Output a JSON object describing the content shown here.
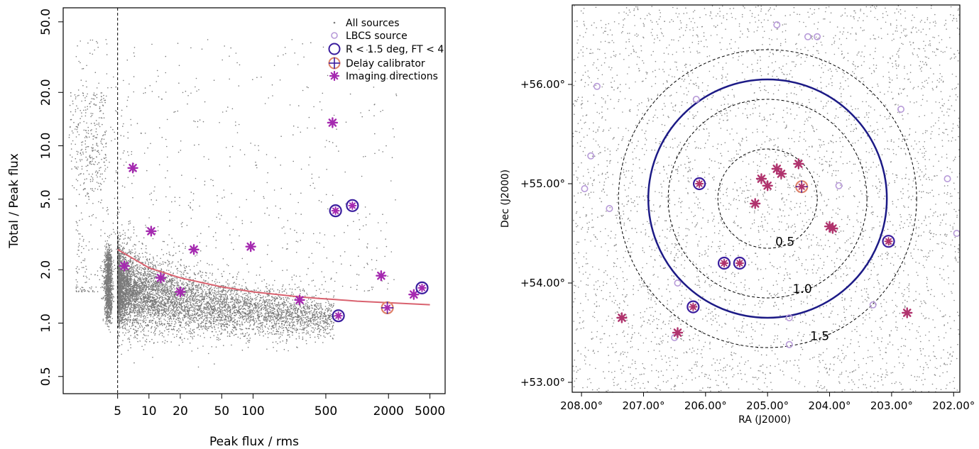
{
  "chart_data": [
    {
      "type": "scatter",
      "xlabel": "Peak flux / rms",
      "ylabel": "Total / Peak flux",
      "x_scale": "log",
      "y_scale": "log",
      "xlim": [
        1.5,
        7000
      ],
      "ylim": [
        0.4,
        60
      ],
      "x_ticks": [
        "5",
        "10",
        "20",
        "50",
        "100",
        "500",
        "2000",
        "5000"
      ],
      "x_tick_values": [
        5,
        10,
        20,
        50,
        100,
        500,
        2000,
        5000
      ],
      "y_ticks": [
        "0.5",
        "1.0",
        "2.0",
        "5.0",
        "10.0",
        "20.0",
        "50.0"
      ],
      "y_tick_values": [
        0.5,
        1,
        2,
        5,
        10,
        20,
        50
      ],
      "threshold_line": {
        "x": 5,
        "style": "dashed"
      },
      "fit_curve": {
        "color": "#d9626f",
        "points": [
          [
            5,
            2.6
          ],
          [
            10,
            2.05
          ],
          [
            20,
            1.8
          ],
          [
            50,
            1.6
          ],
          [
            100,
            1.5
          ],
          [
            300,
            1.4
          ],
          [
            1000,
            1.33
          ],
          [
            5000,
            1.27
          ]
        ]
      },
      "legend": {
        "placement": "top-right",
        "entries": [
          "All sources",
          "LBCS source",
          "R < 1.5 deg, FT < 4",
          "Delay calibrator",
          "Imaging directions"
        ]
      },
      "background_population": {
        "name": "All sources",
        "color": "#7a7a7a",
        "note_count_points_rendered": "dense"
      },
      "imaging_directions": [
        {
          "x": 7,
          "y": 7.5,
          "circled": false
        },
        {
          "x": 5.8,
          "y": 2.1,
          "circled": false
        },
        {
          "x": 10.5,
          "y": 3.3,
          "circled": false
        },
        {
          "x": 13,
          "y": 1.8,
          "circled": false
        },
        {
          "x": 20,
          "y": 1.5,
          "circled": false
        },
        {
          "x": 27,
          "y": 2.6,
          "circled": false
        },
        {
          "x": 95,
          "y": 2.7,
          "circled": false
        },
        {
          "x": 280,
          "y": 1.35,
          "circled": false
        },
        {
          "x": 580,
          "y": 13.5,
          "circled": false
        },
        {
          "x": 1700,
          "y": 1.85,
          "circled": false
        },
        {
          "x": 3500,
          "y": 1.45,
          "circled": false
        },
        {
          "x": 620,
          "y": 4.3,
          "circled": true
        },
        {
          "x": 900,
          "y": 4.6,
          "circled": true
        },
        {
          "x": 660,
          "y": 1.1,
          "circled": true
        },
        {
          "x": 4200,
          "y": 1.58,
          "circled": true
        },
        {
          "x": 1950,
          "y": 1.22,
          "circled": true,
          "delay_calibrator": true
        }
      ],
      "colors": {
        "star": "#a52ab0",
        "circle": "#3a1d9e",
        "calibrator": "#e0826a",
        "lbcs": "#b79ad8"
      }
    },
    {
      "type": "scatter",
      "xlabel": "RA (J2000)",
      "ylabel": "Dec (J2000)",
      "x_ticks": [
        "208.00°",
        "207.00°",
        "206.00°",
        "205.00°",
        "204.00°",
        "203.00°",
        "202.00°"
      ],
      "x_tick_values": [
        208,
        207,
        206,
        205,
        204,
        203,
        202
      ],
      "y_ticks": [
        "+53.00°",
        "+54.00°",
        "+55.00°",
        "+56.00°"
      ],
      "y_tick_values": [
        53,
        54,
        55,
        56
      ],
      "xlim": [
        208.15,
        201.9
      ],
      "ylim": [
        52.9,
        56.8
      ],
      "x_direction": "decreasing",
      "pointing_centre": {
        "ra": 205.0,
        "dec": 54.85
      },
      "radius_rings": [
        {
          "label": "0.5",
          "radius_deg": 0.5,
          "style": "dashed"
        },
        {
          "label": "1.0",
          "radius_deg": 1.0,
          "style": "dashed"
        },
        {
          "label": "1.5",
          "radius_deg": 1.5,
          "style": "dashed"
        },
        {
          "label": "",
          "radius_deg": 1.2,
          "style": "solid"
        }
      ],
      "lbcs_sources": [
        {
          "ra": 204.85,
          "dec": 56.6
        },
        {
          "ra": 204.35,
          "dec": 56.48
        },
        {
          "ra": 204.2,
          "dec": 56.48
        },
        {
          "ra": 207.75,
          "dec": 55.98
        },
        {
          "ra": 206.15,
          "dec": 55.85
        },
        {
          "ra": 202.85,
          "dec": 55.75
        },
        {
          "ra": 207.85,
          "dec": 55.28
        },
        {
          "ra": 207.95,
          "dec": 54.95
        },
        {
          "ra": 207.55,
          "dec": 54.75
        },
        {
          "ra": 203.85,
          "dec": 54.98
        },
        {
          "ra": 202.1,
          "dec": 55.05
        },
        {
          "ra": 201.95,
          "dec": 54.5
        },
        {
          "ra": 206.45,
          "dec": 54.0
        },
        {
          "ra": 206.5,
          "dec": 53.45
        },
        {
          "ra": 203.3,
          "dec": 53.78
        },
        {
          "ra": 204.65,
          "dec": 53.65
        },
        {
          "ra": 204.65,
          "dec": 53.38
        }
      ],
      "imaging_directions": [
        {
          "ra": 206.1,
          "dec": 55.0,
          "circled": true
        },
        {
          "ra": 204.45,
          "dec": 54.97,
          "circled": true,
          "delay_calibrator": true
        },
        {
          "ra": 203.05,
          "dec": 54.42,
          "circled": true
        },
        {
          "ra": 205.7,
          "dec": 54.2,
          "circled": true
        },
        {
          "ra": 205.45,
          "dec": 54.2,
          "circled": true
        },
        {
          "ra": 206.2,
          "dec": 53.76,
          "circled": true
        },
        {
          "ra": 204.85,
          "dec": 55.15,
          "circled": false
        },
        {
          "ra": 204.78,
          "dec": 55.1,
          "circled": false
        },
        {
          "ra": 204.5,
          "dec": 55.2,
          "circled": false
        },
        {
          "ra": 205.1,
          "dec": 55.05,
          "circled": false
        },
        {
          "ra": 205.0,
          "dec": 54.98,
          "circled": false
        },
        {
          "ra": 205.2,
          "dec": 54.8,
          "circled": false
        },
        {
          "ra": 204.0,
          "dec": 54.57,
          "circled": false
        },
        {
          "ra": 203.95,
          "dec": 54.55,
          "circled": false
        },
        {
          "ra": 207.35,
          "dec": 53.65,
          "circled": false
        },
        {
          "ra": 206.45,
          "dec": 53.5,
          "circled": false
        },
        {
          "ra": 202.75,
          "dec": 53.7,
          "circled": false
        }
      ]
    }
  ]
}
